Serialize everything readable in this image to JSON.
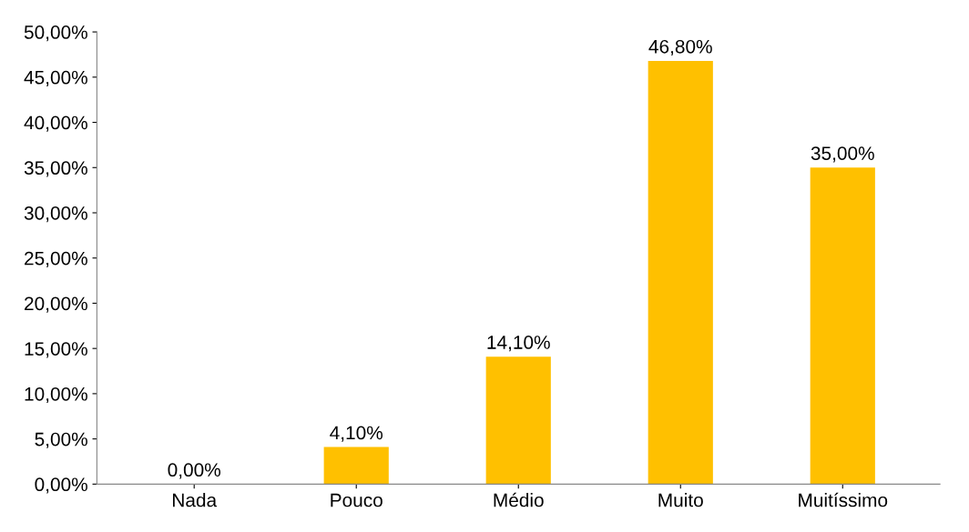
{
  "chart_data": {
    "type": "bar",
    "categories": [
      "Nada",
      "Pouco",
      "Médio",
      "Muito",
      "Muitíssimo"
    ],
    "values": [
      0.0,
      4.1,
      14.1,
      46.8,
      35.0
    ],
    "value_labels": [
      "0,00%",
      "4,10%",
      "14,10%",
      "46,80%",
      "35,00%"
    ],
    "color": "#ffc000",
    "ylim": [
      0,
      50
    ],
    "yticks": [
      {
        "value": 0,
        "label": "0,00%"
      },
      {
        "value": 5,
        "label": "5,00%"
      },
      {
        "value": 10,
        "label": "10,00%"
      },
      {
        "value": 15,
        "label": "15,00%"
      },
      {
        "value": 20,
        "label": "20,00%"
      },
      {
        "value": 25,
        "label": "25,00%"
      },
      {
        "value": 30,
        "label": "30,00%"
      },
      {
        "value": 35,
        "label": "35,00%"
      },
      {
        "value": 40,
        "label": "40,00%"
      },
      {
        "value": 45,
        "label": "45,00%"
      },
      {
        "value": 50,
        "label": "50,00%"
      }
    ],
    "grid": false
  }
}
